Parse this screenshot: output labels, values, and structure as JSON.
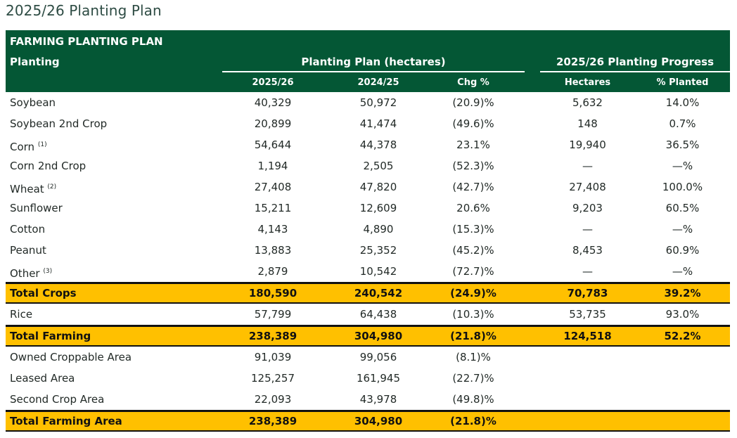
{
  "page": {
    "title": "2025/26 Planting Plan"
  },
  "table": {
    "caption": "FARMING PLANTING PLAN",
    "row_header": "Planting",
    "group_plan": "Planting Plan (hectares)",
    "group_progress": "2025/26 Planting Progress",
    "columns": [
      "2025/26",
      "2024/25",
      "Chg %",
      "Hectares",
      "% Planted"
    ],
    "colors": {
      "header_bg": "#045735",
      "total_bg": "#ffc000"
    },
    "rows": [
      {
        "label": "Soybean",
        "note": "",
        "v2526": "40,329",
        "v2425": "50,972",
        "chg": "(20.9)%",
        "ha": "5,632",
        "pct": "14.0%",
        "total": false
      },
      {
        "label": "Soybean 2nd Crop",
        "note": "",
        "v2526": "20,899",
        "v2425": "41,474",
        "chg": "(49.6)%",
        "ha": "148",
        "pct": "0.7%",
        "total": false
      },
      {
        "label": "Corn",
        "note": "(1)",
        "v2526": "54,644",
        "v2425": "44,378",
        "chg": "23.1%",
        "ha": "19,940",
        "pct": "36.5%",
        "total": false
      },
      {
        "label": "Corn 2nd Crop",
        "note": "",
        "v2526": "1,194",
        "v2425": "2,505",
        "chg": "(52.3)%",
        "ha": "—",
        "pct": "—%",
        "total": false
      },
      {
        "label": "Wheat",
        "note": "(2)",
        "v2526": "27,408",
        "v2425": "47,820",
        "chg": "(42.7)%",
        "ha": "27,408",
        "pct": "100.0%",
        "total": false
      },
      {
        "label": "Sunflower",
        "note": "",
        "v2526": "15,211",
        "v2425": "12,609",
        "chg": "20.6%",
        "ha": "9,203",
        "pct": "60.5%",
        "total": false
      },
      {
        "label": "Cotton",
        "note": "",
        "v2526": "4,143",
        "v2425": "4,890",
        "chg": "(15.3)%",
        "ha": "—",
        "pct": "—%",
        "total": false
      },
      {
        "label": "Peanut",
        "note": "",
        "v2526": "13,883",
        "v2425": "25,352",
        "chg": "(45.2)%",
        "ha": "8,453",
        "pct": "60.9%",
        "total": false
      },
      {
        "label": "Other",
        "note": "(3)",
        "v2526": "2,879",
        "v2425": "10,542",
        "chg": "(72.7)%",
        "ha": "—",
        "pct": "—%",
        "total": false
      },
      {
        "label": "Total Crops",
        "note": "",
        "v2526": "180,590",
        "v2425": "240,542",
        "chg": "(24.9)%",
        "ha": "70,783",
        "pct": "39.2%",
        "total": true
      },
      {
        "label": "Rice",
        "note": "",
        "v2526": "57,799",
        "v2425": "64,438",
        "chg": "(10.3)%",
        "ha": "53,735",
        "pct": "93.0%",
        "total": false
      },
      {
        "label": "Total Farming",
        "note": "",
        "v2526": "238,389",
        "v2425": "304,980",
        "chg": "(21.8)%",
        "ha": "124,518",
        "pct": "52.2%",
        "total": true
      },
      {
        "label": "Owned Croppable Area",
        "note": "",
        "v2526": "91,039",
        "v2425": "99,056",
        "chg": "(8.1)%",
        "ha": "",
        "pct": "",
        "total": false
      },
      {
        "label": "Leased Area",
        "note": "",
        "v2526": "125,257",
        "v2425": "161,945",
        "chg": "(22.7)%",
        "ha": "",
        "pct": "",
        "total": false
      },
      {
        "label": "Second Crop Area",
        "note": "",
        "v2526": "22,093",
        "v2425": "43,978",
        "chg": "(49.8)%",
        "ha": "",
        "pct": "",
        "total": false
      },
      {
        "label": "Total Farming Area",
        "note": "",
        "v2526": "238,389",
        "v2425": "304,980",
        "chg": "(21.8)%",
        "ha": "",
        "pct": "",
        "total": true
      }
    ]
  }
}
